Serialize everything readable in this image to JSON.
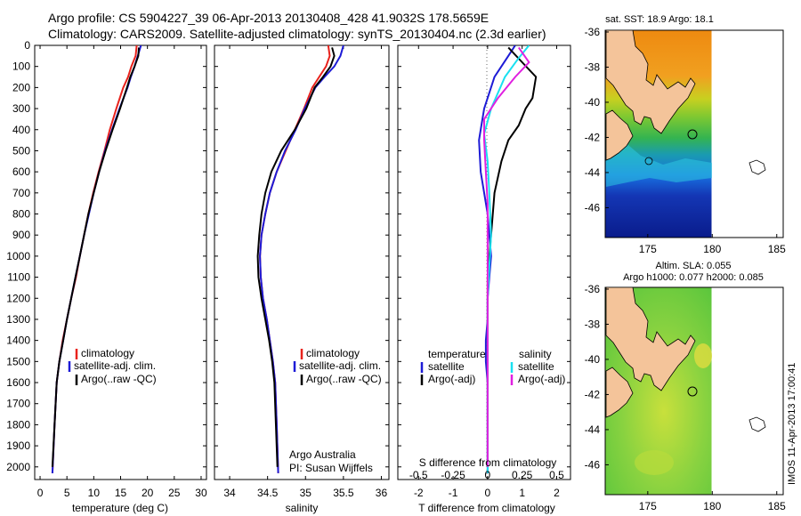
{
  "header": {
    "line1": "Argo profile: CS 5904227_39 06-Apr-2013 20130408_428 41.9032S 178.5659E",
    "line2": "Climatology: CARS2009. Satellite-adjusted climatology: synTS_20130404.nc (2.3d earlier)"
  },
  "side_label": "IMOS 11-Apr-2013 17:00:41",
  "colors": {
    "climatology": "#e8221c",
    "satellite": "#1d1bd6",
    "argo": "#000000",
    "salinity_sat": "#19e0f0",
    "salinity_argo": "#e020e0",
    "land": "#f4c49a"
  },
  "chart_data": [
    {
      "type": "line",
      "panel": "temperature",
      "xlabel": "temperature (deg C)",
      "ylabel": "",
      "xlim": [
        -1,
        31
      ],
      "ylim": [
        2060,
        0
      ],
      "y_reversed": true,
      "xticks": [
        "0",
        "5",
        "10",
        "15",
        "20",
        "25",
        "30"
      ],
      "yticks": [
        "0",
        "100",
        "200",
        "300",
        "400",
        "500",
        "600",
        "700",
        "800",
        "900",
        "1000",
        "1100",
        "1200",
        "1300",
        "1400",
        "1500",
        "1600",
        "1700",
        "1800",
        "1900",
        "2000"
      ],
      "legend": [
        "climatology",
        "satellite-adj. clim.",
        "Argo(..raw -QC)"
      ],
      "series": [
        {
          "name": "climatology",
          "x": [
            18.0,
            17.8,
            17.0,
            16.4,
            15.5,
            14.2,
            13.0,
            12.0,
            10.9,
            9.9,
            9.0,
            8.2,
            7.4,
            6.7,
            5.8,
            5.0,
            4.2,
            3.6,
            3.1,
            2.7,
            2.3
          ],
          "y": [
            0,
            50,
            100,
            150,
            200,
            300,
            400,
            500,
            600,
            700,
            800,
            900,
            1000,
            1100,
            1200,
            1300,
            1400,
            1500,
            1600,
            1800,
            2030
          ]
        },
        {
          "name": "satellite-adj. clim.",
          "x": [
            18.8,
            18.2,
            17.6,
            16.9,
            16.3,
            14.8,
            13.4,
            12.1,
            11.0,
            10.0,
            9.1,
            8.2,
            7.4,
            6.6,
            5.8,
            5.0,
            4.3,
            3.6,
            3.1,
            2.7,
            2.3
          ],
          "y": [
            0,
            50,
            100,
            150,
            200,
            300,
            400,
            500,
            600,
            700,
            800,
            900,
            1000,
            1100,
            1200,
            1300,
            1400,
            1500,
            1600,
            1800,
            2030
          ]
        },
        {
          "name": "Argo(..raw -QC)",
          "x": [
            18.4,
            18.3,
            17.6,
            16.8,
            16.2,
            14.9,
            13.5,
            12.2,
            11.0,
            10.0,
            9.0,
            8.2,
            7.4,
            6.6,
            5.8,
            5.0,
            4.3,
            3.6,
            3.1,
            2.7,
            2.3
          ],
          "y": [
            10,
            50,
            100,
            150,
            200,
            300,
            400,
            500,
            600,
            700,
            800,
            900,
            1000,
            1100,
            1200,
            1300,
            1400,
            1500,
            1600,
            1800,
            2000
          ]
        }
      ]
    },
    {
      "type": "line",
      "panel": "salinity",
      "xlabel": "salinity",
      "xlim": [
        33.8,
        36.1
      ],
      "ylim": [
        2060,
        0
      ],
      "y_reversed": true,
      "xticks": [
        "34",
        "34.5",
        "35",
        "35.5",
        "36"
      ],
      "legend": [
        "climatology",
        "satellite-adj. clim.",
        "Argo(..raw -QC)"
      ],
      "annotation": [
        "Argo Australia",
        "PI: Susan Wijffels"
      ],
      "series": [
        {
          "name": "climatology",
          "x": [
            35.3,
            35.32,
            35.27,
            35.18,
            35.09,
            34.98,
            34.86,
            34.74,
            34.62,
            34.53,
            34.47,
            34.42,
            34.4,
            34.41,
            34.44,
            34.49,
            34.53,
            34.57,
            34.6,
            34.62,
            34.64
          ],
          "y": [
            0,
            50,
            100,
            150,
            200,
            300,
            400,
            500,
            600,
            700,
            800,
            900,
            1000,
            1100,
            1200,
            1300,
            1400,
            1500,
            1600,
            1800,
            2030
          ]
        },
        {
          "name": "satellite-adj. clim.",
          "x": [
            35.5,
            35.46,
            35.38,
            35.25,
            35.13,
            34.99,
            34.87,
            34.73,
            34.62,
            34.53,
            34.47,
            34.42,
            34.4,
            34.41,
            34.44,
            34.49,
            34.53,
            34.57,
            34.6,
            34.62,
            34.64
          ],
          "y": [
            0,
            50,
            100,
            150,
            200,
            300,
            400,
            500,
            600,
            700,
            800,
            900,
            1000,
            1100,
            1200,
            1300,
            1400,
            1500,
            1600,
            1800,
            2030
          ]
        },
        {
          "name": "Argo(..raw -QC)",
          "x": [
            35.35,
            35.38,
            35.33,
            35.23,
            35.12,
            35.01,
            34.86,
            34.68,
            34.55,
            34.47,
            34.42,
            34.39,
            34.37,
            34.38,
            34.42,
            34.47,
            34.52,
            34.56,
            34.59,
            34.61,
            34.63
          ],
          "y": [
            10,
            50,
            100,
            150,
            200,
            300,
            400,
            500,
            600,
            700,
            800,
            900,
            1000,
            1100,
            1200,
            1300,
            1400,
            1500,
            1600,
            1800,
            2000
          ]
        }
      ]
    },
    {
      "type": "line",
      "panel": "difference",
      "xlabel": "T difference from climatology",
      "x2label": "S difference from climatology",
      "xlim": [
        -2.6,
        2.4
      ],
      "ylim": [
        2060,
        0
      ],
      "y_reversed": true,
      "xticks": [
        "-2",
        "-1",
        "0",
        "1",
        "2"
      ],
      "x2ticks": [
        "-0.5",
        "-0.25",
        "0",
        "0.25",
        "0.5"
      ],
      "legend": {
        "temperature_title": "temperature",
        "salinity_title": "salinity",
        "items": [
          "satellite",
          "Argo(-adj)",
          "satellite",
          "Argo(-adj)"
        ]
      },
      "series": [
        {
          "name": "satellite",
          "group": "temperature",
          "x": [
            0.8,
            0.6,
            0.2,
            -0.1,
            -0.2,
            -0.25,
            -0.2,
            -0.1,
            0.0,
            0.05,
            0.1,
            0.05,
            0.0,
            0.0,
            -0.05,
            -0.05,
            0.0,
            0.0,
            0.0,
            0.0
          ],
          "y": [
            0,
            50,
            150,
            300,
            400,
            450,
            600,
            700,
            800,
            900,
            1000,
            1100,
            1200,
            1300,
            1400,
            1500,
            1600,
            1700,
            1900,
            2030
          ]
        },
        {
          "name": "Argo(-adj)",
          "group": "temperature",
          "x": [
            0.6,
            1.0,
            1.4,
            1.3,
            1.1,
            0.9,
            0.6,
            0.4,
            0.2,
            0.1,
            0.05,
            0.0,
            0.0,
            0.0,
            0.0,
            0.0,
            0.0,
            0.0
          ],
          "y": [
            10,
            80,
            150,
            250,
            300,
            380,
            450,
            550,
            700,
            900,
            1000,
            1100,
            1200,
            1300,
            1500,
            1700,
            1900,
            2000
          ]
        },
        {
          "name": "satellite",
          "group": "salinity",
          "x": [
            1.2,
            0.9,
            0.5,
            0.1,
            -0.1,
            0.0,
            0.05,
            0.1,
            0.05,
            0.0,
            0.0,
            0.0,
            0.0,
            0.0
          ],
          "y": [
            0,
            60,
            150,
            300,
            420,
            550,
            700,
            900,
            1050,
            1200,
            1400,
            1600,
            1800,
            2030
          ]
        },
        {
          "name": "Argo(-adj)",
          "group": "salinity",
          "x": [
            0.9,
            1.2,
            0.8,
            0.3,
            -0.1,
            -0.1,
            -0.05,
            0.0,
            0.0,
            0.0,
            0.0,
            0.0,
            0.0,
            0.0
          ],
          "y": [
            10,
            80,
            150,
            250,
            350,
            450,
            600,
            750,
            900,
            1050,
            1300,
            1500,
            1800,
            2000
          ]
        }
      ]
    },
    {
      "type": "heatmap",
      "panel": "map-sst",
      "title": "sat. SST: 18.9 Argo: 18.1",
      "xlim": [
        171.7,
        185.5
      ],
      "ylim": [
        -47.7,
        -35.9
      ],
      "xticks": [
        "175",
        "180",
        "185"
      ],
      "yticks": [
        "-36",
        "-38",
        "-40",
        "-42",
        "-44",
        "-46"
      ],
      "float_position": {
        "lon": 178.57,
        "lat": -41.9
      }
    },
    {
      "type": "heatmap",
      "panel": "map-sla",
      "title": [
        "Altim. SLA: 0.055",
        "Argo h1000: 0.077 h2000: 0.085"
      ],
      "xlim": [
        171.7,
        185.5
      ],
      "ylim": [
        -47.7,
        -35.9
      ],
      "xticks": [
        "175",
        "180",
        "185"
      ],
      "yticks": [
        "-36",
        "-38",
        "-40",
        "-42",
        "-44",
        "-46"
      ],
      "float_position": {
        "lon": 178.57,
        "lat": -41.9
      }
    }
  ]
}
